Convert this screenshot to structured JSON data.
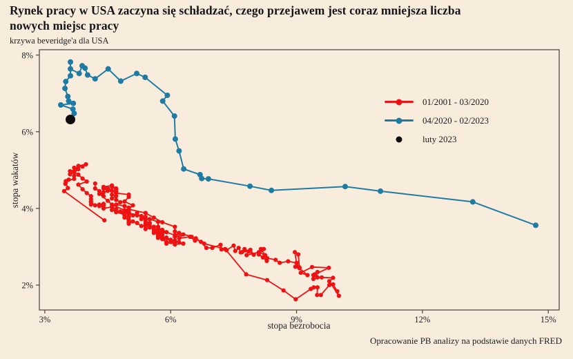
{
  "header": {
    "title_line1": "Rynek pracy w USA zaczyna się schładzać, czego przejawem jest coraz mniejsza liczba",
    "title_line2": "nowych miejsc pracy",
    "subtitle": "krzywa beveridge'a dla USA"
  },
  "footer": {
    "source": "Opracowanie PB analizy na podstawie danych FRED"
  },
  "colors": {
    "background": "#f8ecdd",
    "frame": "#4a4038",
    "tick_text": "#1f1f1f",
    "red_series": "#ee1212",
    "blue_series": "#1e7ca4",
    "black_point": "#0d0d0d"
  },
  "chart_data": {
    "type": "scatter",
    "title": "Rynek pracy w USA zaczyna się schładzać, czego przejawem jest coraz mniejsza liczba nowych miejsc pracy",
    "subtitle": "krzywa beveridge'a dla USA",
    "xlabel": "stopa bezrobocia",
    "ylabel": "stopa wakatów",
    "xlim": [
      2.87,
      15.26
    ],
    "ylim": [
      1.35,
      8.14
    ],
    "x_tick_values": [
      3,
      6,
      9,
      12,
      15
    ],
    "x_ticks": [
      "3%",
      "6%",
      "9%",
      "12%",
      "15%"
    ],
    "y_tick_values": [
      2,
      4,
      6,
      8
    ],
    "y_ticks": [
      "2%",
      "4%",
      "6%",
      "8%"
    ],
    "grid": false,
    "legend_position": "right-center",
    "series": [
      {
        "name": "01/2001 - 03/2020",
        "color": "#ee1212",
        "style": "line+marker",
        "line_width": 1.8,
        "marker_radius": 3.1,
        "points": [
          [
            4.2,
            4.65
          ],
          [
            4.2,
            4.52
          ],
          [
            4.3,
            4.45
          ],
          [
            4.4,
            4.32
          ],
          [
            4.3,
            4.38
          ],
          [
            4.5,
            4.2
          ],
          [
            4.6,
            4.1
          ],
          [
            4.9,
            3.95
          ],
          [
            5.0,
            3.88
          ],
          [
            5.3,
            3.8
          ],
          [
            5.5,
            3.72
          ],
          [
            5.7,
            3.65
          ],
          [
            5.7,
            3.52
          ],
          [
            5.7,
            3.44
          ],
          [
            5.7,
            3.5
          ],
          [
            5.9,
            3.38
          ],
          [
            5.8,
            3.44
          ],
          [
            5.8,
            3.32
          ],
          [
            5.8,
            3.28
          ],
          [
            5.7,
            3.33
          ],
          [
            5.7,
            3.28
          ],
          [
            5.7,
            3.23
          ],
          [
            5.9,
            3.24
          ],
          [
            6.0,
            3.18
          ],
          [
            5.8,
            3.2
          ],
          [
            5.9,
            3.12
          ],
          [
            5.9,
            3.08
          ],
          [
            6.0,
            3.12
          ],
          [
            6.1,
            3.06
          ],
          [
            6.3,
            3.08
          ],
          [
            6.2,
            3.12
          ],
          [
            6.1,
            3.16
          ],
          [
            6.1,
            3.1
          ],
          [
            6.0,
            3.18
          ],
          [
            5.8,
            3.24
          ],
          [
            5.7,
            3.28
          ],
          [
            5.7,
            3.34
          ],
          [
            5.6,
            3.4
          ],
          [
            5.8,
            3.36
          ],
          [
            5.6,
            3.46
          ],
          [
            5.6,
            3.52
          ],
          [
            5.6,
            3.46
          ],
          [
            5.5,
            3.56
          ],
          [
            5.4,
            3.6
          ],
          [
            5.4,
            3.55
          ],
          [
            5.5,
            3.62
          ],
          [
            5.4,
            3.66
          ],
          [
            5.4,
            3.72
          ],
          [
            5.3,
            3.72
          ],
          [
            5.4,
            3.78
          ],
          [
            5.2,
            3.82
          ],
          [
            5.2,
            3.88
          ],
          [
            5.1,
            3.82
          ],
          [
            5.0,
            3.92
          ],
          [
            5.0,
            3.98
          ],
          [
            4.9,
            3.92
          ],
          [
            5.0,
            4.02
          ],
          [
            5.0,
            3.96
          ],
          [
            5.0,
            4.02
          ],
          [
            4.9,
            4.06
          ],
          [
            4.7,
            4.1
          ],
          [
            4.8,
            4.16
          ],
          [
            4.7,
            4.22
          ],
          [
            4.7,
            4.32
          ],
          [
            4.6,
            4.26
          ],
          [
            4.6,
            4.36
          ],
          [
            4.7,
            4.32
          ],
          [
            4.7,
            4.42
          ],
          [
            4.5,
            4.46
          ],
          [
            4.4,
            4.42
          ],
          [
            4.5,
            4.46
          ],
          [
            4.4,
            4.52
          ],
          [
            4.6,
            4.46
          ],
          [
            4.5,
            4.52
          ],
          [
            4.4,
            4.56
          ],
          [
            4.5,
            4.5
          ],
          [
            4.4,
            4.56
          ],
          [
            4.6,
            4.6
          ],
          [
            4.7,
            4.52
          ],
          [
            4.6,
            4.56
          ],
          [
            4.7,
            4.5
          ],
          [
            4.7,
            4.46
          ],
          [
            4.7,
            4.4
          ],
          [
            5.0,
            4.36
          ],
          [
            5.0,
            4.3
          ],
          [
            4.9,
            4.18
          ],
          [
            5.1,
            4.08
          ],
          [
            5.0,
            3.98
          ],
          [
            5.4,
            3.88
          ],
          [
            5.6,
            3.76
          ],
          [
            5.8,
            3.64
          ],
          [
            6.1,
            3.52
          ],
          [
            6.1,
            3.4
          ],
          [
            6.5,
            3.26
          ],
          [
            6.8,
            3.08
          ],
          [
            7.3,
            2.94
          ],
          [
            7.8,
            2.28
          ],
          [
            8.3,
            2.13
          ],
          [
            8.69,
            1.86
          ],
          [
            8.98,
            1.63
          ],
          [
            9.34,
            1.9
          ],
          [
            9.41,
            1.94
          ],
          [
            9.5,
            1.94
          ],
          [
            9.49,
            1.74
          ],
          [
            9.58,
            1.74
          ],
          [
            9.78,
            2.0
          ],
          [
            9.87,
            2.02
          ],
          [
            9.97,
            1.84
          ],
          [
            10.01,
            1.72
          ],
          [
            9.78,
            2.1
          ],
          [
            9.87,
            2.19
          ],
          [
            9.6,
            2.2
          ],
          [
            9.4,
            2.16
          ],
          [
            9.45,
            2.26
          ],
          [
            9.5,
            2.2
          ],
          [
            9.43,
            2.28
          ],
          [
            9.5,
            2.34
          ],
          [
            9.4,
            2.26
          ],
          [
            9.77,
            2.45
          ],
          [
            9.37,
            2.47
          ],
          [
            9.1,
            2.32
          ],
          [
            9.26,
            2.26
          ],
          [
            9.07,
            2.44
          ],
          [
            8.97,
            2.48
          ],
          [
            9.02,
            2.49
          ],
          [
            9.07,
            2.46
          ],
          [
            9.04,
            2.8
          ],
          [
            8.96,
            2.86
          ],
          [
            9.0,
            2.58
          ],
          [
            8.8,
            2.62
          ],
          [
            8.6,
            2.58
          ],
          [
            8.5,
            2.66
          ],
          [
            8.3,
            2.7
          ],
          [
            8.29,
            2.63
          ],
          [
            8.2,
            2.72
          ],
          [
            8.1,
            2.8
          ],
          [
            8.22,
            2.94
          ],
          [
            8.15,
            2.94
          ],
          [
            8.25,
            2.78
          ],
          [
            8.1,
            2.86
          ],
          [
            7.81,
            2.78
          ],
          [
            7.86,
            2.88
          ],
          [
            7.7,
            2.86
          ],
          [
            7.9,
            2.92
          ],
          [
            7.98,
            2.79
          ],
          [
            7.76,
            2.94
          ],
          [
            7.67,
            2.85
          ],
          [
            7.62,
            2.97
          ],
          [
            7.54,
            2.89
          ],
          [
            7.5,
            3.03
          ],
          [
            7.33,
            2.91
          ],
          [
            7.21,
            2.93
          ],
          [
            7.19,
            3.05
          ],
          [
            6.99,
            2.97
          ],
          [
            6.85,
            2.97
          ],
          [
            6.72,
            3.13
          ],
          [
            6.6,
            3.22
          ],
          [
            6.58,
            3.16
          ],
          [
            6.46,
            3.26
          ],
          [
            6.2,
            3.22
          ],
          [
            6.3,
            3.32
          ],
          [
            6.1,
            3.26
          ],
          [
            6.2,
            3.36
          ],
          [
            6.1,
            3.3
          ],
          [
            5.9,
            3.38
          ],
          [
            5.7,
            3.32
          ],
          [
            5.8,
            3.4
          ],
          [
            5.6,
            3.36
          ],
          [
            5.7,
            3.44
          ],
          [
            5.5,
            3.5
          ],
          [
            5.4,
            3.46
          ],
          [
            5.4,
            3.54
          ],
          [
            5.5,
            3.6
          ],
          [
            5.3,
            3.54
          ],
          [
            5.2,
            3.62
          ],
          [
            5.1,
            3.66
          ],
          [
            5.0,
            3.6
          ],
          [
            5.0,
            3.68
          ],
          [
            5.0,
            3.64
          ],
          [
            5.0,
            3.7
          ],
          [
            4.9,
            3.76
          ],
          [
            4.9,
            3.82
          ],
          [
            5.0,
            3.78
          ],
          [
            5.0,
            3.86
          ],
          [
            4.7,
            3.9
          ],
          [
            4.9,
            3.84
          ],
          [
            4.8,
            3.92
          ],
          [
            4.9,
            3.88
          ],
          [
            5.0,
            3.94
          ],
          [
            4.9,
            3.9
          ],
          [
            4.6,
            3.96
          ],
          [
            4.7,
            3.92
          ],
          [
            4.7,
            3.98
          ],
          [
            4.6,
            4.04
          ],
          [
            4.4,
            4.0
          ],
          [
            4.4,
            4.08
          ],
          [
            4.4,
            4.02
          ],
          [
            4.3,
            4.1
          ],
          [
            4.3,
            4.06
          ],
          [
            4.4,
            4.12
          ],
          [
            4.2,
            4.08
          ],
          [
            4.1,
            4.16
          ],
          [
            4.1,
            4.1
          ],
          [
            4.1,
            4.18
          ],
          [
            4.1,
            4.24
          ],
          [
            4.1,
            4.32
          ],
          [
            4.0,
            4.4
          ],
          [
            3.9,
            4.5
          ],
          [
            3.8,
            4.62
          ],
          [
            4.0,
            4.7
          ],
          [
            3.9,
            4.78
          ],
          [
            3.8,
            4.88
          ],
          [
            3.7,
            4.94
          ],
          [
            3.8,
            5.02
          ],
          [
            3.7,
            5.06
          ],
          [
            3.9,
            5.09
          ],
          [
            3.98,
            5.15
          ],
          [
            3.8,
            5.11
          ],
          [
            3.79,
            5.03
          ],
          [
            3.6,
            4.97
          ],
          [
            3.6,
            4.89
          ],
          [
            3.7,
            4.95
          ],
          [
            3.7,
            4.85
          ],
          [
            3.7,
            4.77
          ],
          [
            3.5,
            4.71
          ],
          [
            3.57,
            4.75
          ],
          [
            3.49,
            4.64
          ],
          [
            3.5,
            4.67
          ],
          [
            3.55,
            4.53
          ],
          [
            3.46,
            4.45
          ],
          [
            4.42,
            3.69
          ]
        ]
      },
      {
        "name": "04/2020 - 02/2023",
        "color": "#1e7ca4",
        "style": "line+marker",
        "line_width": 2,
        "marker_radius": 4,
        "points": [
          [
            14.7,
            3.56
          ],
          [
            13.2,
            4.17
          ],
          [
            11.0,
            4.45
          ],
          [
            10.16,
            4.57
          ],
          [
            8.4,
            4.47
          ],
          [
            7.89,
            4.58
          ],
          [
            6.9,
            4.77
          ],
          [
            6.74,
            4.78
          ],
          [
            6.7,
            4.88
          ],
          [
            6.31,
            5.03
          ],
          [
            6.2,
            5.5
          ],
          [
            6.11,
            5.81
          ],
          [
            6.09,
            6.41
          ],
          [
            5.81,
            6.8
          ],
          [
            5.92,
            6.95
          ],
          [
            5.39,
            7.42
          ],
          [
            5.19,
            7.52
          ],
          [
            4.81,
            7.32
          ],
          [
            4.51,
            7.64
          ],
          [
            4.2,
            7.38
          ],
          [
            4.02,
            7.48
          ],
          [
            3.96,
            7.66
          ],
          [
            3.89,
            7.72
          ],
          [
            3.82,
            7.52
          ],
          [
            3.61,
            7.64
          ],
          [
            3.61,
            7.82
          ],
          [
            3.61,
            7.46
          ],
          [
            3.5,
            7.31
          ],
          [
            3.48,
            7.13
          ],
          [
            3.55,
            6.92
          ],
          [
            3.57,
            6.8
          ],
          [
            3.68,
            6.74
          ],
          [
            3.38,
            6.7
          ],
          [
            3.67,
            6.59
          ],
          [
            3.7,
            6.48
          ],
          [
            3.61,
            6.32
          ]
        ]
      },
      {
        "name": "luty 2023",
        "color": "#0d0d0d",
        "style": "marker",
        "line_width": 0,
        "marker_radius": 7,
        "points": [
          [
            3.61,
            6.32
          ]
        ]
      }
    ]
  }
}
